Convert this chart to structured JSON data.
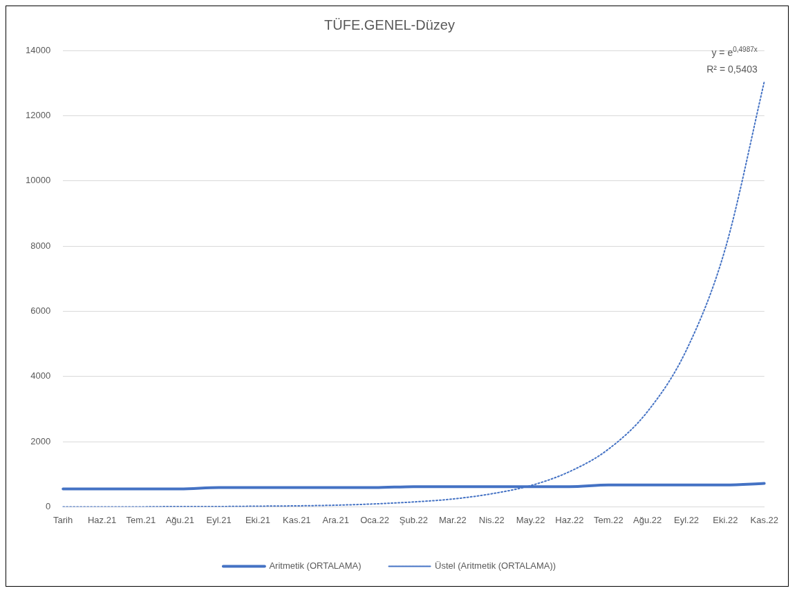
{
  "chart_data": {
    "type": "line",
    "title": "TÜFE.GENEL-Düzey",
    "categories": [
      "Tarih",
      "Haz.21",
      "Tem.21",
      "Ağu.21",
      "Eyl.21",
      "Eki.21",
      "Kas.21",
      "Ara.21",
      "Oca.22",
      "Şub.22",
      "Mar.22",
      "Nis.22",
      "May.22",
      "Haz.22",
      "Tem.22",
      "Ağu.22",
      "Eyl.22",
      "Eki.22",
      "Kas.22"
    ],
    "series": [
      {
        "name": "Aritmetik (ORTALAMA)",
        "color": "#4472c4",
        "line_style": "solid",
        "values": [
          550,
          550,
          550,
          550,
          590,
          590,
          590,
          590,
          590,
          620,
          620,
          620,
          620,
          620,
          670,
          670,
          670,
          670,
          720
        ]
      },
      {
        "name": "Üstel (Aritmetik (ORTALAMA))",
        "color": "#4472c4",
        "line_style": "dotted",
        "values": [
          0,
          0,
          0,
          10,
          10,
          20,
          30,
          50,
          90,
          150,
          240,
          400,
          650,
          1080,
          1770,
          2920,
          4810,
          7930,
          13050
        ]
      }
    ],
    "ylim": [
      0,
      14000
    ],
    "yticks": [
      0,
      2000,
      4000,
      6000,
      8000,
      10000,
      12000,
      14000
    ],
    "grid": "y",
    "legend": "bottom",
    "marker": "none",
    "annotations": [
      "y = e$^{0,4987x}$",
      "R² = 0,5403"
    ]
  }
}
